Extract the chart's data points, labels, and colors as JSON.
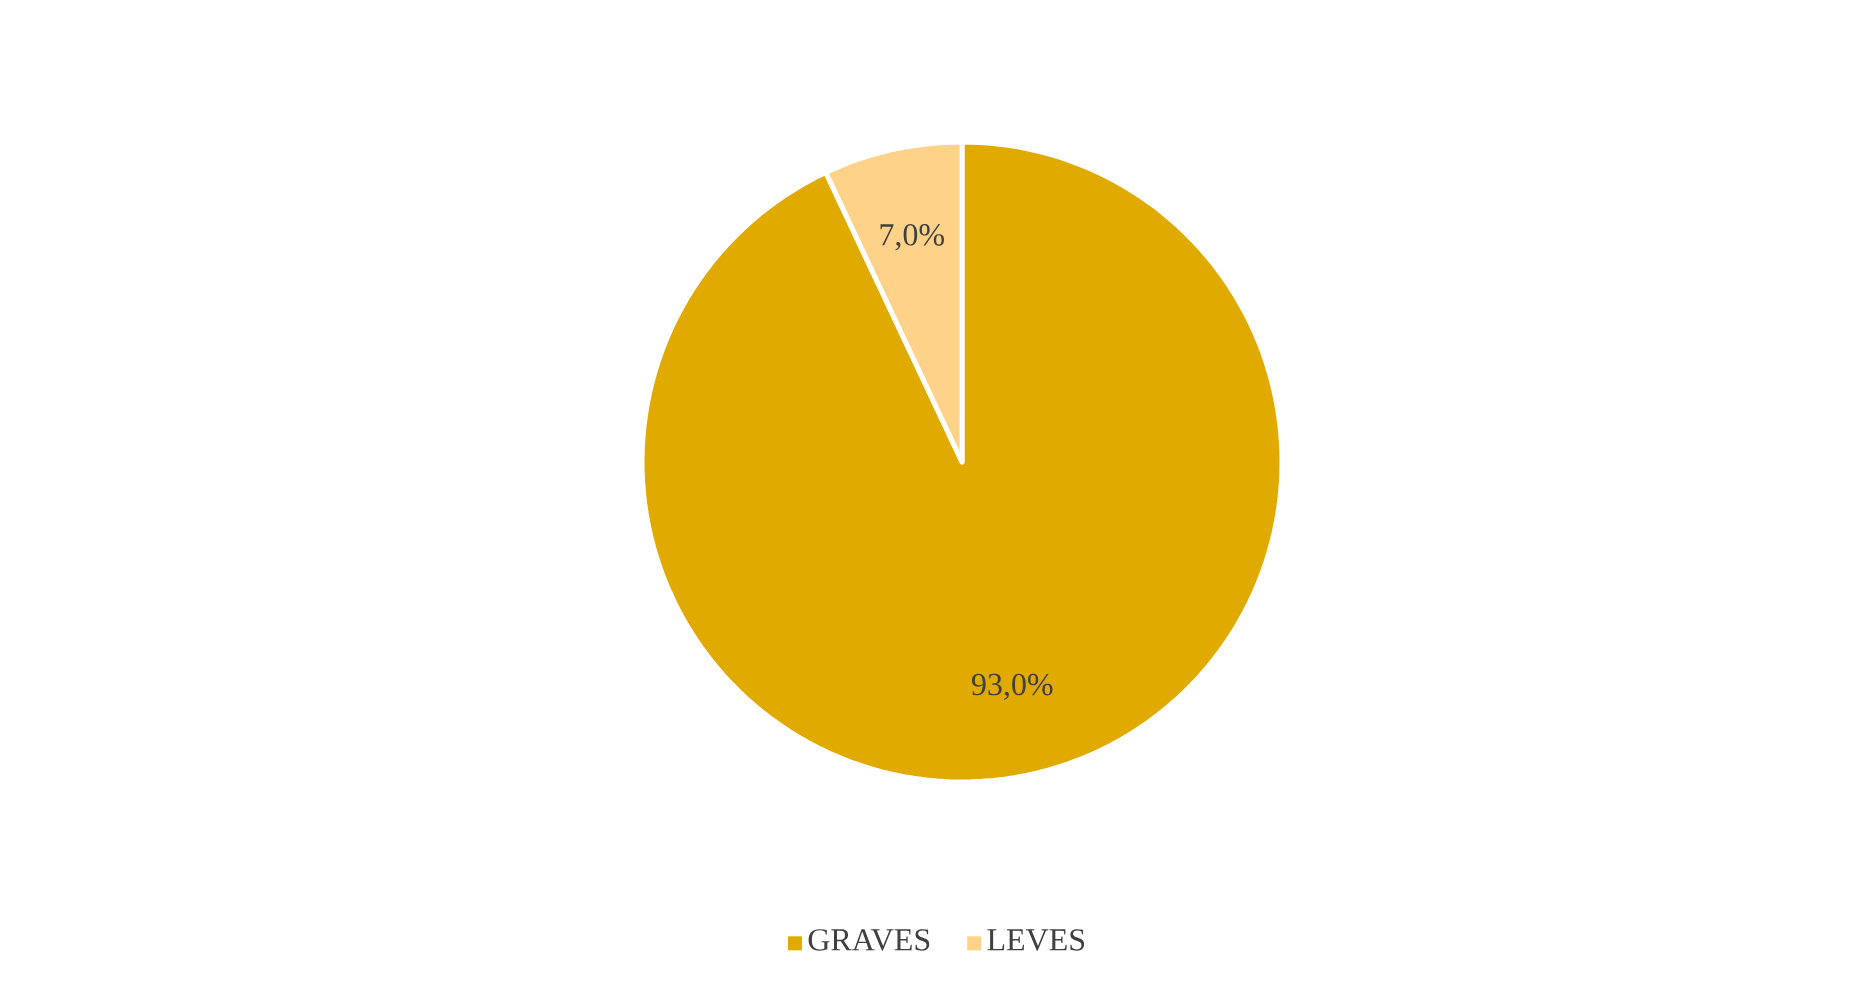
{
  "chart_data": {
    "type": "pie",
    "categories": [
      "GRAVES",
      "LEVES"
    ],
    "values": [
      93.0,
      7.0
    ],
    "colors": [
      "#e0aa00",
      "#ffd28a"
    ],
    "value_labels": [
      "93,0%",
      "7,0%"
    ],
    "legend": "bottom"
  }
}
